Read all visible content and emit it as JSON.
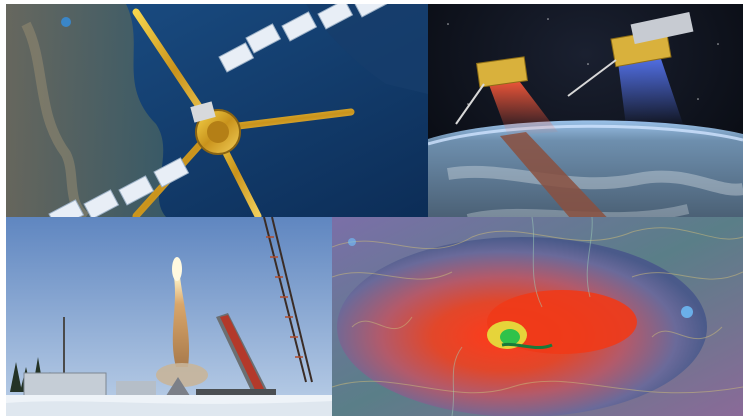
{
  "collage": {
    "panels": [
      {
        "name": "smos-satellite-over-coastline"
      },
      {
        "name": "twin-satellites-over-earth"
      },
      {
        "name": "rocket-launch-snowy-site"
      },
      {
        "name": "false-color-terrain-map"
      }
    ]
  }
}
